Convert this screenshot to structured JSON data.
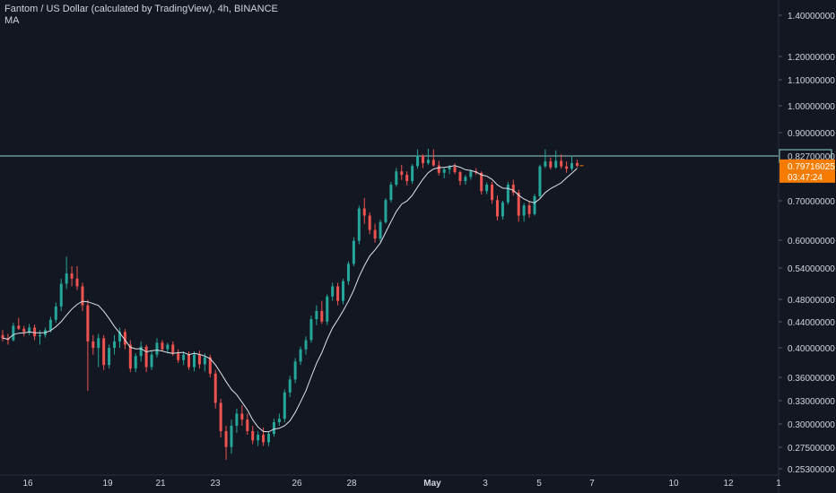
{
  "legend": {
    "title": "Fantom / US Dollar (calculated by TradingView), 4h, BINANCE",
    "indicator": "MA"
  },
  "colors": {
    "background": "#131722",
    "up": "#26a69a",
    "down": "#ef5350",
    "ma": "#e0e3eb",
    "level_line": "#8fd6cf",
    "price_label_bg": "#f57c00",
    "text": "#d1d4dc"
  },
  "chart_data": {
    "type": "candlestick",
    "scale": "log",
    "symbol": "FTMUSD",
    "interval": "4h",
    "y_ticks": [
      "1.40000000",
      "1.20000000",
      "1.10000000",
      "1.00000000",
      "0.90000000",
      "0.70000000",
      "0.60000000",
      "0.54000000",
      "0.48000000",
      "0.44000000",
      "0.40000000",
      "0.36000000",
      "0.33000000",
      "0.30000000",
      "0.27500000",
      "0.25300000"
    ],
    "x_ticks": [
      {
        "label": "16"
      },
      {
        "label": "19"
      },
      {
        "label": "21"
      },
      {
        "label": "23"
      },
      {
        "label": "26"
      },
      {
        "label": "28"
      },
      {
        "label": "May"
      },
      {
        "label": "3"
      },
      {
        "label": "5"
      },
      {
        "label": "7"
      },
      {
        "label": "10"
      },
      {
        "label": "12"
      },
      {
        "label": "1"
      }
    ],
    "horizontal_line": {
      "value": 0.827,
      "label": "0.82700000"
    },
    "last_price": {
      "value": 0.79716025,
      "label": "0.79716025",
      "countdown": "03:47:24"
    },
    "candles": [
      [
        0.42,
        0.428,
        0.41,
        0.415
      ],
      [
        0.415,
        0.422,
        0.405,
        0.412
      ],
      [
        0.412,
        0.44,
        0.41,
        0.435
      ],
      [
        0.435,
        0.448,
        0.428,
        0.43
      ],
      [
        0.43,
        0.435,
        0.418,
        0.425
      ],
      [
        0.425,
        0.438,
        0.42,
        0.432
      ],
      [
        0.432,
        0.437,
        0.412,
        0.418
      ],
      [
        0.418,
        0.428,
        0.405,
        0.42
      ],
      [
        0.42,
        0.432,
        0.416,
        0.428
      ],
      [
        0.428,
        0.45,
        0.424,
        0.445
      ],
      [
        0.445,
        0.475,
        0.44,
        0.468
      ],
      [
        0.468,
        0.52,
        0.46,
        0.51
      ],
      [
        0.51,
        0.565,
        0.5,
        0.53
      ],
      [
        0.53,
        0.545,
        0.505,
        0.52
      ],
      [
        0.52,
        0.545,
        0.498,
        0.505
      ],
      [
        0.505,
        0.512,
        0.46,
        0.47
      ],
      [
        0.47,
        0.48,
        0.34,
        0.41
      ],
      [
        0.41,
        0.42,
        0.39,
        0.4
      ],
      [
        0.4,
        0.422,
        0.372,
        0.415
      ],
      [
        0.415,
        0.42,
        0.368,
        0.375
      ],
      [
        0.375,
        0.405,
        0.37,
        0.4
      ],
      [
        0.4,
        0.42,
        0.39,
        0.41
      ],
      [
        0.41,
        0.432,
        0.4,
        0.425
      ],
      [
        0.425,
        0.43,
        0.398,
        0.405
      ],
      [
        0.405,
        0.412,
        0.365,
        0.37
      ],
      [
        0.37,
        0.392,
        0.365,
        0.388
      ],
      [
        0.388,
        0.41,
        0.38,
        0.402
      ],
      [
        0.402,
        0.405,
        0.365,
        0.372
      ],
      [
        0.372,
        0.395,
        0.368,
        0.39
      ],
      [
        0.39,
        0.415,
        0.386,
        0.408
      ],
      [
        0.408,
        0.412,
        0.395,
        0.398
      ],
      [
        0.398,
        0.408,
        0.392,
        0.405
      ],
      [
        0.405,
        0.41,
        0.388,
        0.392
      ],
      [
        0.392,
        0.398,
        0.378,
        0.382
      ],
      [
        0.382,
        0.395,
        0.375,
        0.39
      ],
      [
        0.39,
        0.395,
        0.368,
        0.372
      ],
      [
        0.372,
        0.395,
        0.366,
        0.39
      ],
      [
        0.39,
        0.396,
        0.37,
        0.376
      ],
      [
        0.376,
        0.392,
        0.366,
        0.386
      ],
      [
        0.386,
        0.39,
        0.358,
        0.363
      ],
      [
        0.363,
        0.368,
        0.318,
        0.325
      ],
      [
        0.325,
        0.33,
        0.285,
        0.292
      ],
      [
        0.292,
        0.298,
        0.262,
        0.275
      ],
      [
        0.275,
        0.305,
        0.268,
        0.298
      ],
      [
        0.298,
        0.318,
        0.29,
        0.312
      ],
      [
        0.312,
        0.322,
        0.298,
        0.305
      ],
      [
        0.305,
        0.312,
        0.288,
        0.292
      ],
      [
        0.292,
        0.298,
        0.278,
        0.282
      ],
      [
        0.282,
        0.292,
        0.276,
        0.288
      ],
      [
        0.288,
        0.296,
        0.276,
        0.28
      ],
      [
        0.28,
        0.292,
        0.276,
        0.289
      ],
      [
        0.289,
        0.306,
        0.286,
        0.302
      ],
      [
        0.302,
        0.312,
        0.298,
        0.306
      ],
      [
        0.306,
        0.342,
        0.302,
        0.338
      ],
      [
        0.338,
        0.36,
        0.332,
        0.355
      ],
      [
        0.355,
        0.385,
        0.35,
        0.38
      ],
      [
        0.38,
        0.402,
        0.375,
        0.398
      ],
      [
        0.398,
        0.418,
        0.39,
        0.412
      ],
      [
        0.412,
        0.452,
        0.408,
        0.446
      ],
      [
        0.446,
        0.47,
        0.436,
        0.46
      ],
      [
        0.46,
        0.478,
        0.438,
        0.442
      ],
      [
        0.442,
        0.49,
        0.436,
        0.486
      ],
      [
        0.486,
        0.512,
        0.478,
        0.505
      ],
      [
        0.505,
        0.512,
        0.47,
        0.478
      ],
      [
        0.478,
        0.52,
        0.472,
        0.515
      ],
      [
        0.515,
        0.555,
        0.508,
        0.55
      ],
      [
        0.55,
        0.608,
        0.545,
        0.6
      ],
      [
        0.6,
        0.685,
        0.592,
        0.678
      ],
      [
        0.678,
        0.705,
        0.64,
        0.66
      ],
      [
        0.66,
        0.668,
        0.615,
        0.625
      ],
      [
        0.625,
        0.64,
        0.596,
        0.605
      ],
      [
        0.605,
        0.65,
        0.598,
        0.644
      ],
      [
        0.644,
        0.705,
        0.64,
        0.7
      ],
      [
        0.7,
        0.75,
        0.694,
        0.742
      ],
      [
        0.742,
        0.79,
        0.736,
        0.78
      ],
      [
        0.78,
        0.8,
        0.755,
        0.77
      ],
      [
        0.77,
        0.78,
        0.74,
        0.752
      ],
      [
        0.752,
        0.802,
        0.744,
        0.796
      ],
      [
        0.796,
        0.848,
        0.788,
        0.828
      ],
      [
        0.828,
        0.832,
        0.79,
        0.805
      ],
      [
        0.805,
        0.85,
        0.8,
        0.815
      ],
      [
        0.815,
        0.848,
        0.794,
        0.798
      ],
      [
        0.798,
        0.812,
        0.768,
        0.776
      ],
      [
        0.776,
        0.792,
        0.76,
        0.786
      ],
      [
        0.786,
        0.8,
        0.772,
        0.794
      ],
      [
        0.794,
        0.804,
        0.772,
        0.778
      ],
      [
        0.778,
        0.782,
        0.74,
        0.752
      ],
      [
        0.752,
        0.77,
        0.742,
        0.764
      ],
      [
        0.764,
        0.786,
        0.756,
        0.78
      ],
      [
        0.78,
        0.79,
        0.77,
        0.776
      ],
      [
        0.776,
        0.78,
        0.715,
        0.724
      ],
      [
        0.724,
        0.748,
        0.716,
        0.742
      ],
      [
        0.742,
        0.75,
        0.69,
        0.7
      ],
      [
        0.7,
        0.712,
        0.648,
        0.658
      ],
      [
        0.658,
        0.698,
        0.65,
        0.694
      ],
      [
        0.694,
        0.75,
        0.688,
        0.742
      ],
      [
        0.742,
        0.756,
        0.712,
        0.72
      ],
      [
        0.72,
        0.728,
        0.645,
        0.66
      ],
      [
        0.66,
        0.692,
        0.645,
        0.686
      ],
      [
        0.686,
        0.698,
        0.655,
        0.664
      ],
      [
        0.664,
        0.716,
        0.66,
        0.71
      ],
      [
        0.71,
        0.8,
        0.706,
        0.795
      ],
      [
        0.795,
        0.848,
        0.79,
        0.81
      ],
      [
        0.81,
        0.822,
        0.786,
        0.792
      ],
      [
        0.792,
        0.845,
        0.788,
        0.812
      ],
      [
        0.812,
        0.832,
        0.788,
        0.795
      ],
      [
        0.795,
        0.81,
        0.776,
        0.788
      ],
      [
        0.788,
        0.828,
        0.782,
        0.805
      ],
      [
        0.805,
        0.815,
        0.792,
        0.797
      ]
    ],
    "ma": {
      "period": 9
    }
  }
}
